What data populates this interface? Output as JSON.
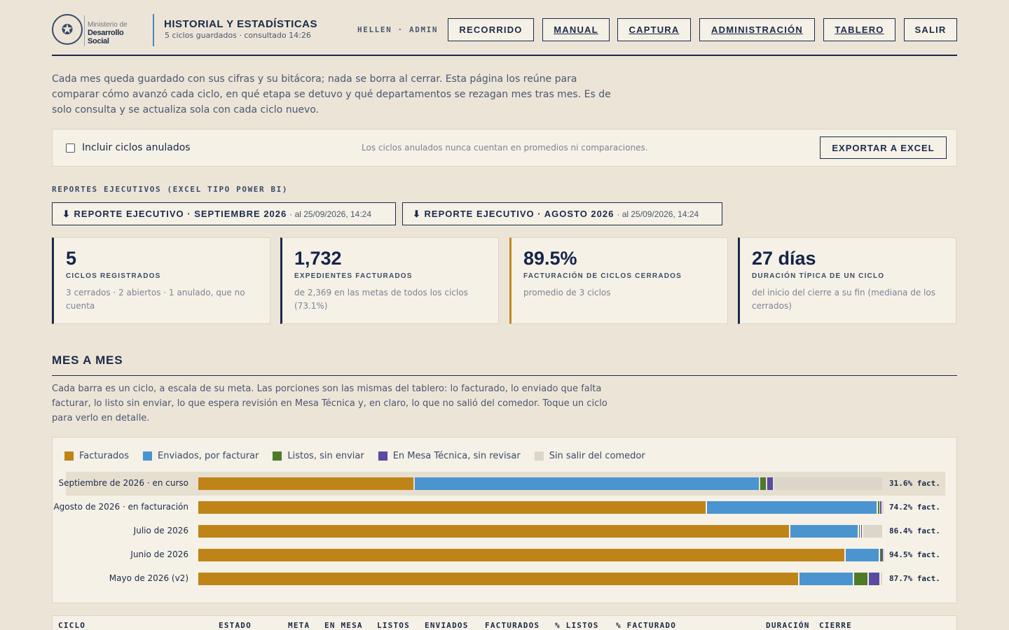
{
  "header": {
    "logo_ministerio": "Ministerio de",
    "logo_name": "Desarrollo Social",
    "title": "HISTORIAL Y ESTADÍSTICAS",
    "subtitle": "5 ciclos guardados · consultado 14:26",
    "user": "HELLEN · ADMIN",
    "nav": [
      "RECORRIDO",
      "MANUAL",
      "CAPTURA",
      "ADMINISTRACIÓN",
      "TABLERO",
      "SALIR"
    ]
  },
  "intro": "Cada mes queda guardado con sus cifras y su bitácora; nada se borra al cerrar. Esta página los reúne para comparar cómo avanzó cada ciclo, en qué etapa se detuvo y qué departamentos se rezagan mes tras mes. Es de solo consulta y se actualiza sola con cada ciclo nuevo.",
  "filter": {
    "checkbox_label": "Incluir ciclos anulados",
    "note": "Los ciclos anulados nunca cuentan en promedios ni comparaciones.",
    "export_label": "EXPORTAR A EXCEL"
  },
  "reports": {
    "section_label": "REPORTES EJECUTIVOS (EXCEL TIPO POWER BI)",
    "items": [
      {
        "label": "⬇ REPORTE EJECUTIVO · SEPTIEMBRE 2026",
        "date": "· al 25/09/2026, 14:24"
      },
      {
        "label": "⬇ REPORTE EJECUTIVO · AGOSTO 2026",
        "date": "· al 25/09/2026, 14:24"
      }
    ]
  },
  "kpis": [
    {
      "value": "5",
      "label": "CICLOS REGISTRADOS",
      "desc": "3 cerrados · 2 abiertos · 1 anulado, que no cuenta"
    },
    {
      "value": "1,732",
      "label": "EXPEDIENTES FACTURADOS",
      "desc": "de 2,369 en las metas de todos los ciclos (73.1%)"
    },
    {
      "value": "89.5%",
      "label": "FACTURACIÓN DE CICLOS CERRADOS",
      "desc": "promedio de 3 ciclos"
    },
    {
      "value": "27 días",
      "label": "DURACIÓN TÍPICA DE UN CICLO",
      "desc": "del inicio del cierre a su fin (mediana de los cerrados)"
    }
  ],
  "mes_a_mes": {
    "title": "MES A MES",
    "desc": "Cada barra es un ciclo, a escala de su meta. Las porciones son las mismas del tablero: lo facturado, lo enviado que falta facturar, lo listo sin enviar, lo que espera revisión en Mesa Técnica y, en claro, lo que no salió del comedor. Toque un ciclo para verlo en detalle."
  },
  "colors": {
    "facturados": "#bf8418",
    "enviados": "#4a94d0",
    "listos": "#4f7a2a",
    "mesa": "#5a4aa0",
    "sin_salir": "#dcd6ca"
  },
  "chart_data": {
    "type": "bar",
    "stacked": true,
    "orientation": "horizontal",
    "legend": [
      "Facturados",
      "Enviados, por facturar",
      "Listos, sin enviar",
      "En Mesa Técnica, sin revisar",
      "Sin salir del comedor"
    ],
    "categories": [
      "Septiembre de 2026 · en curso",
      "Agosto de 2026 · en facturación",
      "Julio de 2026",
      "Junio de 2026",
      "Mayo de 2026 (v2)"
    ],
    "pct_labels": [
      "31.6% fact.",
      "74.2% fact.",
      "86.4% fact.",
      "94.5% fact.",
      "87.7% fact."
    ],
    "series": [
      {
        "name": "Facturados",
        "values": [
          31.6,
          74.2,
          86.4,
          94.5,
          87.7
        ]
      },
      {
        "name": "Enviados, por facturar",
        "values": [
          50.4,
          25.0,
          10.0,
          5.0,
          8.0
        ]
      },
      {
        "name": "Listos, sin enviar",
        "values": [
          1.0,
          0.3,
          0.3,
          0.2,
          2.2
        ]
      },
      {
        "name": "En Mesa Técnica, sin revisar",
        "values": [
          1.0,
          0.3,
          0.3,
          0.2,
          1.7
        ]
      },
      {
        "name": "Sin salir del comedor",
        "values": [
          16.0,
          0.2,
          3.0,
          0.1,
          0.4
        ]
      }
    ],
    "highlighted": 0,
    "xlim": [
      0,
      100
    ]
  },
  "table_headers": [
    "CICLO",
    "ESTADO",
    "META",
    "EN MESA",
    "LISTOS",
    "ENVIADOS",
    "FACTURADOS",
    "% LISTOS",
    "% FACTURADO",
    "DURACIÓN",
    "CIERRE"
  ]
}
